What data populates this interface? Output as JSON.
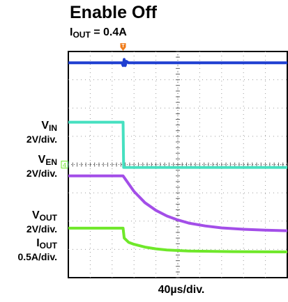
{
  "title": "Enable Off",
  "subtitle": {
    "symbol": "I",
    "sub": "OUT",
    "value": " = 0.4A"
  },
  "labels": {
    "vin": {
      "symbol": "V",
      "sub": "IN",
      "scale": "2V/div."
    },
    "ven": {
      "symbol": "V",
      "sub": "EN",
      "scale": "2V/div."
    },
    "vout": {
      "symbol": "V",
      "sub": "OUT",
      "scale": "2V/div."
    },
    "iout": {
      "symbol": "I",
      "sub": "OUT",
      "scale": "0.5A/div."
    }
  },
  "xlabel": "40µs/div.",
  "chart_data": {
    "type": "line",
    "title": "Enable Off",
    "subtitle": "IOUT = 0.4A",
    "xlabel": "40µs/div.",
    "x_unit": "µs",
    "xlim": [
      -100,
      300
    ],
    "x_divisions": 10,
    "y_divisions": 8,
    "trigger_time": 0,
    "grid": true,
    "series": [
      {
        "name": "VIN",
        "channel": "1",
        "color": "#1f3fd1",
        "scale": "2V/div.",
        "points": [
          [
            -100,
            3.6
          ],
          [
            -2,
            3.6
          ],
          [
            0,
            3.5
          ],
          [
            2,
            3.72
          ],
          [
            4,
            3.5
          ],
          [
            6,
            3.65
          ],
          [
            10,
            3.6
          ],
          [
            300,
            3.6
          ]
        ]
      },
      {
        "name": "VEN",
        "channel": "2",
        "color": "#46e0c0",
        "scale": "2V/div.",
        "points": [
          [
            -100,
            1.5
          ],
          [
            0,
            1.5
          ],
          [
            1,
            -0.1
          ],
          [
            300,
            -0.1
          ]
        ]
      },
      {
        "name": "VOUT",
        "channel": "3",
        "color": "#a34ee8",
        "scale": "2V/div.",
        "points": [
          [
            -100,
            -0.4
          ],
          [
            0,
            -0.4
          ],
          [
            20,
            -0.95
          ],
          [
            40,
            -1.35
          ],
          [
            60,
            -1.62
          ],
          [
            80,
            -1.82
          ],
          [
            100,
            -1.96
          ],
          [
            120,
            -2.07
          ],
          [
            150,
            -2.17
          ],
          [
            180,
            -2.24
          ],
          [
            220,
            -2.29
          ],
          [
            260,
            -2.32
          ],
          [
            300,
            -2.34
          ]
        ]
      },
      {
        "name": "IOUT",
        "channel": "4",
        "color": "#6fe82a",
        "scale": "0.5A/div.",
        "points": [
          [
            -100,
            -2.25
          ],
          [
            0,
            -2.25
          ],
          [
            2,
            -2.6
          ],
          [
            10,
            -2.75
          ],
          [
            20,
            -2.82
          ],
          [
            40,
            -2.92
          ],
          [
            60,
            -2.98
          ],
          [
            80,
            -3.02
          ],
          [
            120,
            -3.06
          ],
          [
            200,
            -3.08
          ],
          [
            300,
            -3.09
          ]
        ]
      }
    ]
  }
}
